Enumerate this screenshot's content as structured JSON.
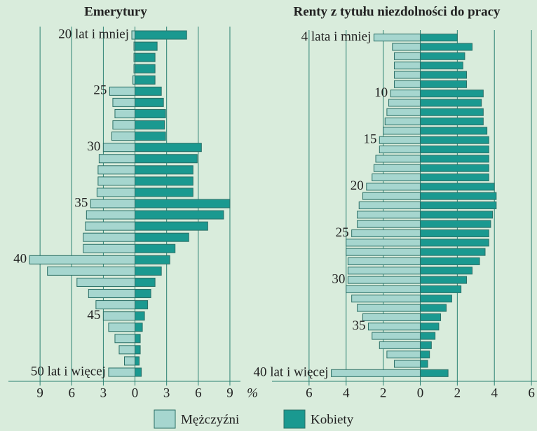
{
  "chart_data": [
    {
      "type": "bar",
      "title": "Emerytury",
      "xlabel": "%",
      "categories": [
        "20 lat i mniej",
        null,
        null,
        null,
        null,
        "25",
        null,
        null,
        null,
        null,
        "30",
        null,
        null,
        null,
        null,
        "35",
        null,
        null,
        null,
        null,
        "40",
        null,
        null,
        null,
        null,
        "45",
        null,
        null,
        null,
        null,
        "50 lat i więcej"
      ],
      "series": [
        {
          "name": "Mężczyźni",
          "color": "#a6d6cf",
          "side": "left",
          "values": [
            0.3,
            0.1,
            0.1,
            0.1,
            0.2,
            2.4,
            2.1,
            1.9,
            2.1,
            2.2,
            3.0,
            3.4,
            3.5,
            3.5,
            3.6,
            4.2,
            4.6,
            4.7,
            4.9,
            4.9,
            10.0,
            8.3,
            5.5,
            4.4,
            3.7,
            3.0,
            2.5,
            1.9,
            1.5,
            1.0,
            2.5
          ]
        },
        {
          "name": "Kobiety",
          "color": "#1a9990",
          "side": "right",
          "values": [
            4.9,
            2.1,
            1.9,
            1.9,
            1.9,
            2.5,
            2.7,
            2.9,
            2.8,
            2.9,
            6.3,
            5.9,
            5.5,
            5.5,
            5.5,
            9.0,
            8.4,
            6.9,
            5.1,
            3.8,
            3.3,
            2.5,
            1.9,
            1.5,
            1.2,
            0.9,
            0.7,
            0.5,
            0.5,
            0.4,
            0.6
          ]
        }
      ],
      "xlim": [
        -12,
        10
      ],
      "xticks": [
        {
          "value": -9,
          "label": "9"
        },
        {
          "value": -6,
          "label": "6"
        },
        {
          "value": -3,
          "label": "3"
        },
        0,
        3,
        6,
        9
      ],
      "grid": true
    },
    {
      "type": "bar",
      "title": "Renty z tytułu niezdolności do pracy",
      "categories": [
        "4 lata i mniej",
        null,
        null,
        null,
        null,
        null,
        "10",
        null,
        null,
        null,
        null,
        "15",
        null,
        null,
        null,
        null,
        "20",
        null,
        null,
        null,
        null,
        "25",
        null,
        null,
        null,
        null,
        "30",
        null,
        null,
        null,
        null,
        "35",
        null,
        null,
        null,
        null,
        "40 lat i więcej"
      ],
      "series": [
        {
          "color": "#a6d6cf",
          "side": "left",
          "values": [
            2.5,
            1.5,
            1.4,
            1.4,
            1.4,
            1.4,
            1.6,
            1.7,
            1.8,
            1.9,
            2.0,
            2.2,
            2.2,
            2.4,
            2.5,
            2.6,
            2.9,
            3.1,
            3.3,
            3.4,
            3.4,
            3.7,
            4.0,
            4.0,
            3.9,
            3.9,
            3.9,
            4.0,
            3.7,
            3.4,
            3.1,
            2.8,
            2.6,
            2.2,
            1.8,
            1.4,
            4.8
          ]
        },
        {
          "color": "#1a9990",
          "side": "right",
          "values": [
            2.0,
            2.8,
            2.4,
            2.3,
            2.5,
            2.5,
            3.4,
            3.3,
            3.4,
            3.4,
            3.6,
            3.7,
            3.7,
            3.7,
            3.7,
            3.7,
            4.0,
            4.1,
            4.1,
            3.9,
            3.8,
            3.7,
            3.7,
            3.5,
            3.2,
            2.8,
            2.5,
            2.2,
            1.7,
            1.4,
            1.1,
            1.0,
            0.8,
            0.6,
            0.5,
            0.4,
            1.5
          ]
        }
      ],
      "xlim": [
        -8,
        6.3
      ],
      "xticks": [
        {
          "value": -6,
          "label": "6"
        },
        {
          "value": -4,
          "label": "4"
        },
        {
          "value": -2,
          "label": "2"
        },
        0,
        2,
        4,
        6
      ],
      "grid": true
    }
  ]
}
